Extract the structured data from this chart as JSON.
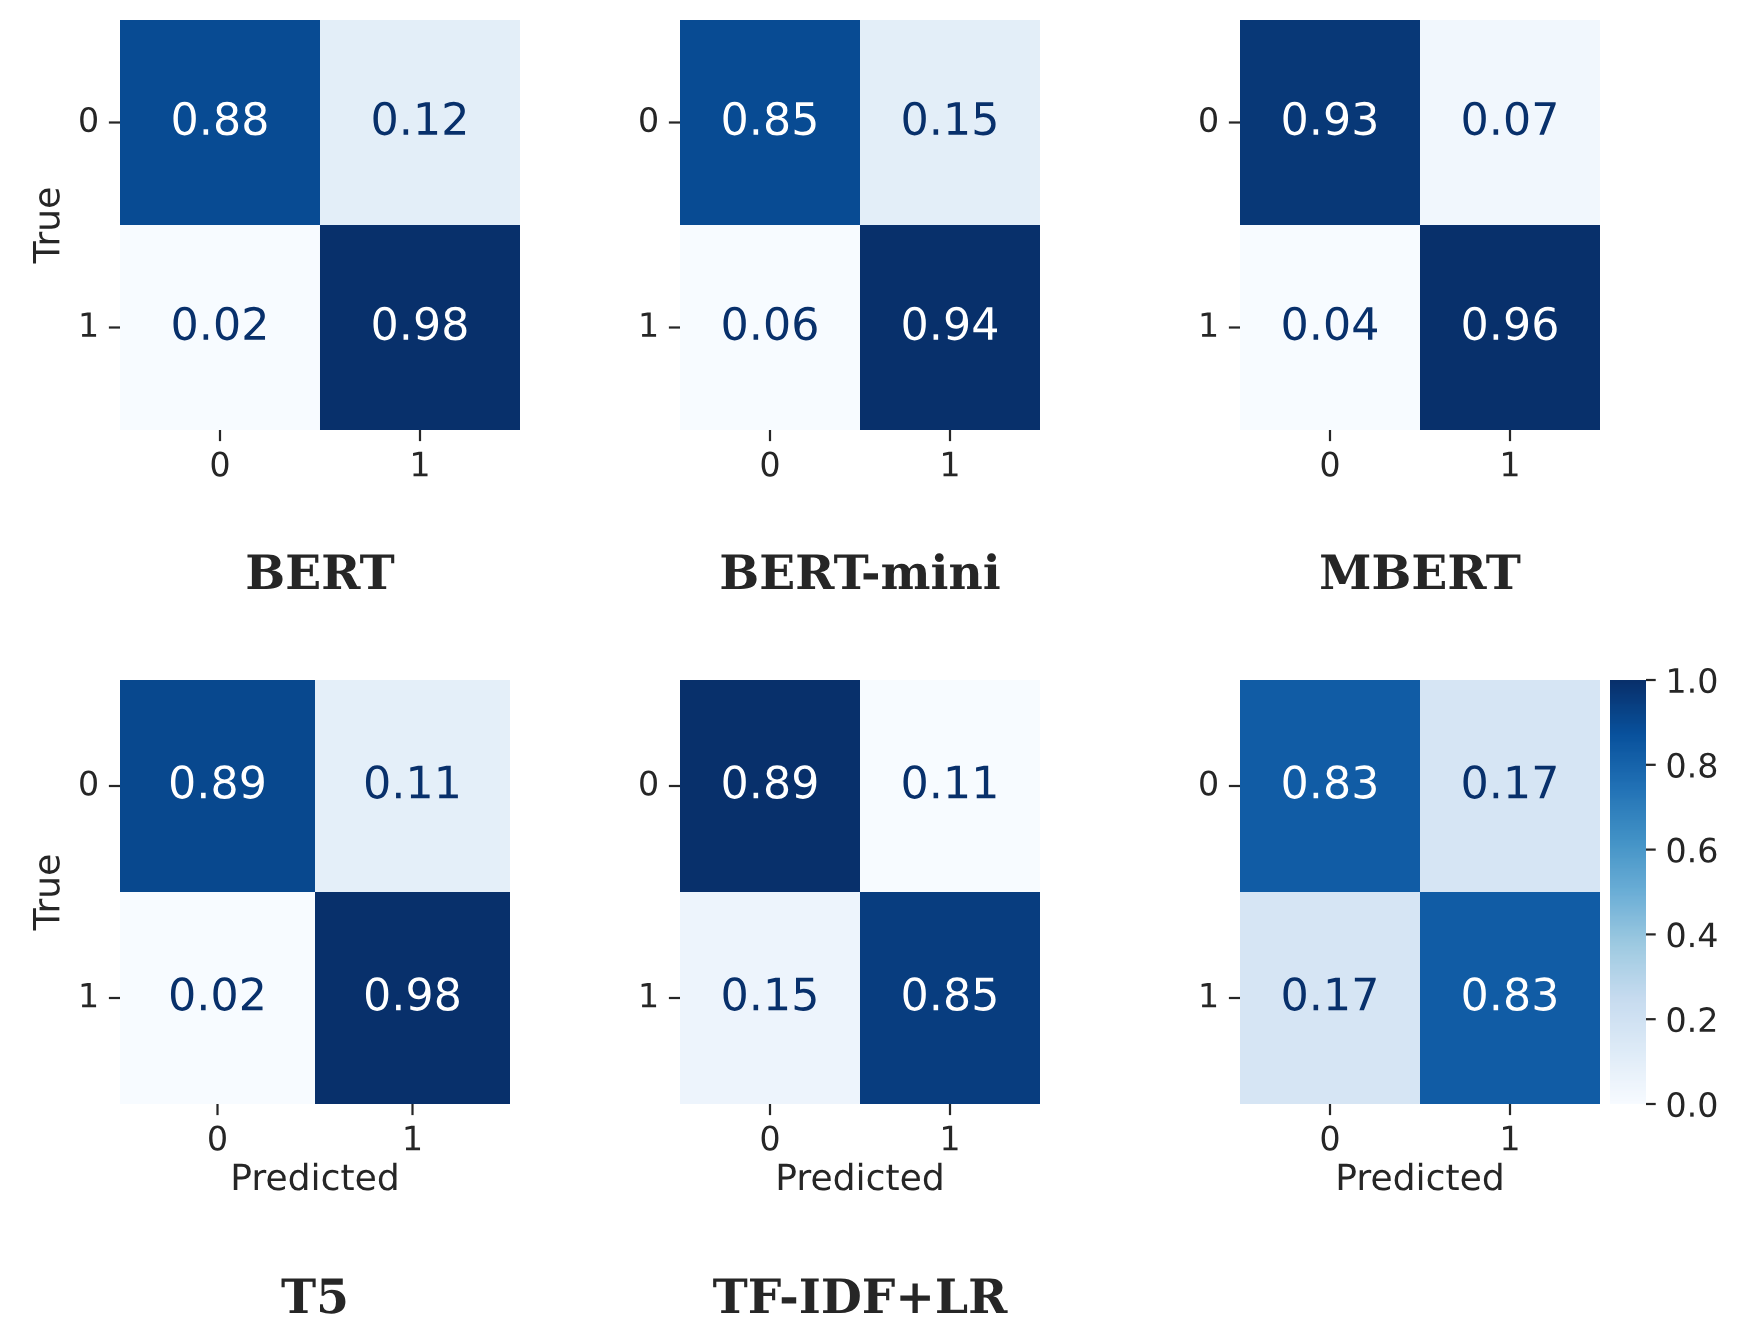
{
  "chart_data": [
    {
      "type": "heatmap",
      "title": "BERT",
      "ylabel": "True",
      "categories": [
        "0",
        "1"
      ],
      "y_categories": [
        "0",
        "1"
      ],
      "cells": [
        [
          0.88,
          0.12
        ],
        [
          0.02,
          0.98
        ]
      ],
      "data_labels": true
    },
    {
      "type": "heatmap",
      "title": "BERT-mini",
      "categories": [
        "0",
        "1"
      ],
      "y_categories": [
        "0",
        "1"
      ],
      "cells": [
        [
          0.85,
          0.15
        ],
        [
          0.06,
          0.94
        ]
      ],
      "data_labels": true
    },
    {
      "type": "heatmap",
      "title": "MBERT",
      "categories": [
        "0",
        "1"
      ],
      "y_categories": [
        "0",
        "1"
      ],
      "cells": [
        [
          0.93,
          0.07
        ],
        [
          0.04,
          0.96
        ]
      ],
      "data_labels": true
    },
    {
      "type": "heatmap",
      "title": "T5",
      "xlabel": "Predicted",
      "ylabel": "True",
      "categories": [
        "0",
        "1"
      ],
      "y_categories": [
        "0",
        "1"
      ],
      "cells": [
        [
          0.89,
          0.11
        ],
        [
          0.02,
          0.98
        ]
      ],
      "data_labels": true
    },
    {
      "type": "heatmap",
      "title": "TF-IDF+LR",
      "xlabel": "Predicted",
      "categories": [
        "0",
        "1"
      ],
      "y_categories": [
        "0",
        "1"
      ],
      "cells": [
        [
          0.89,
          0.11
        ],
        [
          0.15,
          0.85
        ]
      ],
      "data_labels": true
    },
    {
      "type": "heatmap",
      "xlabel": "Predicted",
      "categories": [
        "0",
        "1"
      ],
      "y_categories": [
        "0",
        "1"
      ],
      "cells": [
        [
          0.83,
          0.17
        ],
        [
          0.17,
          0.83
        ]
      ],
      "data_labels": true,
      "clim": [
        0,
        1
      ],
      "cticks": [
        {
          "value": 0,
          "label": "0.0"
        },
        {
          "value": 0.2,
          "label": "0.2"
        },
        {
          "value": 0.4,
          "label": "0.4"
        },
        {
          "value": 0.6,
          "label": "0.6"
        },
        {
          "value": 0.8,
          "label": "0.8"
        },
        {
          "value": 1,
          "label": "1.0"
        }
      ]
    }
  ]
}
